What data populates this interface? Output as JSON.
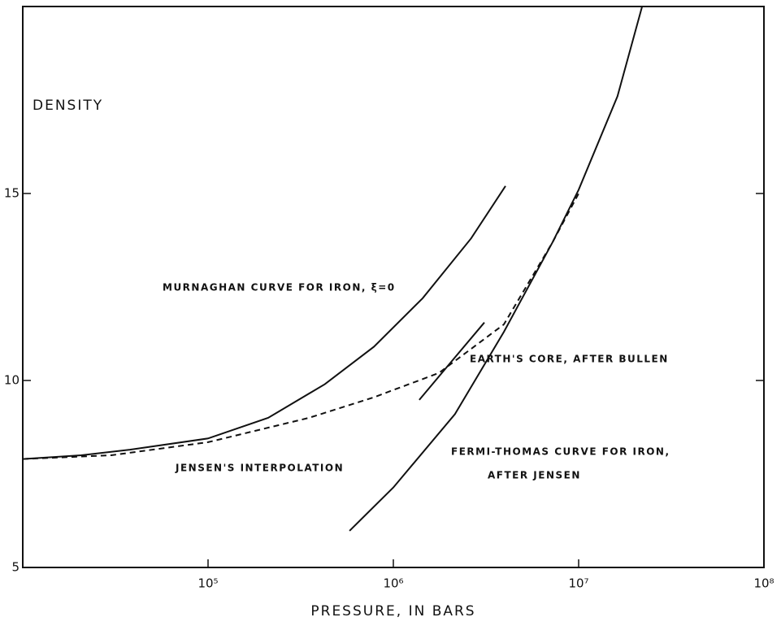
{
  "chart_data": {
    "type": "line",
    "y_label": "DENSITY",
    "x_label": "PRESSURE, IN BARS",
    "log_x": true,
    "xlim": [
      10000,
      100000000
    ],
    "xticks": [
      {
        "value": 100000,
        "label": "10⁵"
      },
      {
        "value": 1000000,
        "label": "10⁶"
      },
      {
        "value": 10000000,
        "label": "10⁷"
      },
      {
        "value": 100000000,
        "label": "10⁸"
      }
    ],
    "ylim": [
      5,
      20
    ],
    "yticks": [
      5,
      10,
      15
    ],
    "color": "#111111",
    "series": [
      {
        "x": [
          10000,
          20700,
          37900,
          100000,
          211000,
          427000,
          785000,
          1440000,
          2630000,
          4030000
        ],
        "values": [
          7.9,
          8.0,
          8.15,
          8.45,
          9.0,
          9.9,
          10.9,
          12.2,
          13.8,
          15.2
        ],
        "dash": false
      },
      {
        "x": [
          10000,
          30000,
          100000,
          350000,
          785000,
          1760000,
          3950000,
          7240000,
          10000000
        ],
        "values": [
          7.9,
          8.0,
          8.35,
          9.0,
          9.55,
          10.2,
          11.5,
          13.7,
          15.0
        ],
        "dash": true
      },
      {
        "x": [
          580000,
          1000000,
          2150000,
          3950000,
          7240000,
          10000000,
          16200000,
          22000000
        ],
        "values": [
          5.98,
          7.14,
          9.1,
          11.3,
          13.7,
          15.1,
          17.6,
          20
        ],
        "dash": false
      },
      {
        "x": [
          1380000,
          2070000,
          3100000
        ],
        "values": [
          9.48,
          10.52,
          11.55
        ],
        "dash": false
      }
    ],
    "annotations": [
      "MURNAGHAN CURVE FOR IRON, ξ=0",
      "EARTH'S CORE, AFTER BULLEN",
      "JENSEN'S INTERPOLATION",
      "FERMI-THOMAS CURVE FOR IRON,",
      "AFTER JENSEN"
    ]
  }
}
